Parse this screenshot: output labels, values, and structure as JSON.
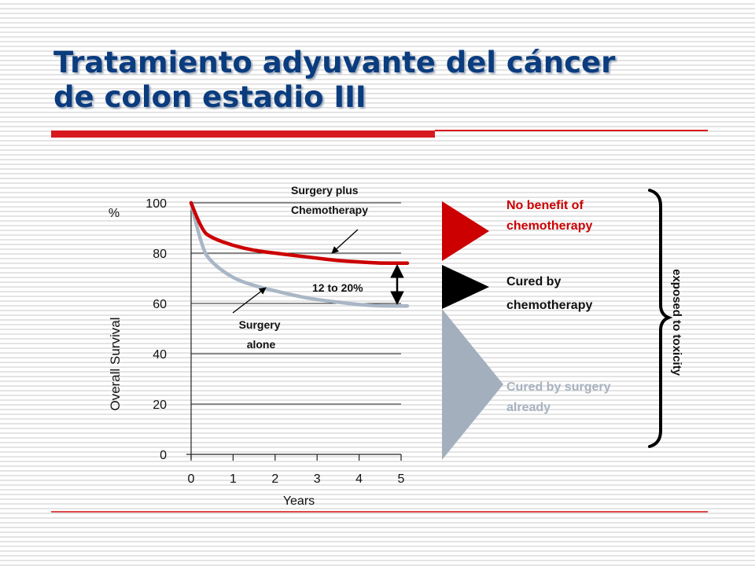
{
  "slide": {
    "title_line1": "Tratamiento adyuvante del cáncer",
    "title_line2": "de colon estadio III"
  },
  "colors": {
    "title": "#0a3c7e",
    "accent_red": "#d71920",
    "surgery_chemo_curve": "#cc0000",
    "surgery_alone_curve": "#a9b6c6",
    "black_triangle": "#000000",
    "gray_triangle": "#a3afbd"
  },
  "chart_data": {
    "type": "line",
    "title": "",
    "xlabel": "Years",
    "ylabel": "Overall Survival",
    "y_unit_label": "%",
    "xlim": [
      0,
      5
    ],
    "ylim": [
      0,
      100
    ],
    "x_ticks": [
      0,
      1,
      2,
      3,
      4,
      5
    ],
    "y_ticks": [
      0,
      20,
      40,
      60,
      80,
      100
    ],
    "grid": "horizontal",
    "series": [
      {
        "name": "Surgery plus Chemotherapy",
        "label_lines": [
          "Surgery plus",
          "Chemotherapy"
        ],
        "color": "#cc0000",
        "x": [
          0,
          0.25,
          0.5,
          1,
          1.5,
          2,
          2.5,
          3,
          3.5,
          4,
          4.5,
          5
        ],
        "y": [
          100,
          89,
          86,
          83,
          81,
          80,
          79,
          78,
          77,
          76.5,
          76,
          76
        ]
      },
      {
        "name": "Surgery alone",
        "label_lines": [
          "Surgery",
          "alone"
        ],
        "color": "#a9b6c6",
        "x": [
          0,
          0.25,
          0.5,
          1,
          1.5,
          2,
          2.5,
          3,
          3.5,
          4,
          4.5,
          5
        ],
        "y": [
          100,
          82,
          76,
          70,
          67,
          65,
          63,
          61.5,
          60.5,
          59.5,
          59,
          59
        ]
      }
    ],
    "annotation": {
      "text": "12 to 20%",
      "x": 5,
      "y_from": 59,
      "y_to": 76
    }
  },
  "groups": {
    "no_benefit": {
      "line1": "No benefit of",
      "line2": "chemotherapy"
    },
    "cured_chemo": {
      "line1": "Cured by",
      "line2": "chemotherapy"
    },
    "cured_surgery": {
      "line1": "Cured by surgery",
      "line2": "already"
    },
    "brace_label": "exposed to toxicity"
  }
}
